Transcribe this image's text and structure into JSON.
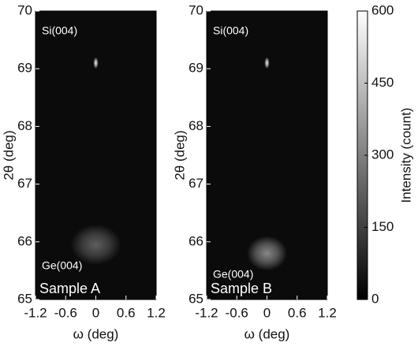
{
  "chart_data": [
    {
      "type": "heatmap",
      "annotation": "Sample A",
      "xlabel": "ω (deg)",
      "ylabel": "2θ (deg)",
      "xlim": [
        -1.2,
        1.2
      ],
      "xticks": [
        -1.2,
        -0.6,
        0,
        0.6,
        1.2
      ],
      "ylim": [
        65,
        70
      ],
      "yticks": [
        65,
        66,
        67,
        68,
        69,
        70
      ],
      "peaks": [
        {
          "label": "Si(004)",
          "omega": 0,
          "two_theta": 69.1,
          "intensity": 560,
          "omega_width": 0.05,
          "two_theta_width": 0.1
        },
        {
          "label": "Ge(004)",
          "omega": 0,
          "two_theta": 65.95,
          "intensity": 220,
          "omega_width": 0.5,
          "two_theta_width": 0.35
        }
      ]
    },
    {
      "type": "heatmap",
      "annotation": "Sample B",
      "xlabel": "ω (deg)",
      "ylabel": "2θ (deg)",
      "xlim": [
        -1.2,
        1.2
      ],
      "xticks": [
        -1.2,
        -0.6,
        0,
        0.6,
        1.2
      ],
      "ylim": [
        65,
        70
      ],
      "yticks": [
        65,
        66,
        67,
        68,
        69,
        70
      ],
      "peaks": [
        {
          "label": "Si(004)",
          "omega": 0,
          "two_theta": 69.1,
          "intensity": 560,
          "omega_width": 0.05,
          "two_theta_width": 0.1
        },
        {
          "label": "Ge(004)",
          "omega": 0,
          "two_theta": 65.8,
          "intensity": 320,
          "omega_width": 0.4,
          "two_theta_width": 0.3
        }
      ]
    },
    {
      "type": "colorbar",
      "label": "Intensity (count)",
      "clim": [
        0,
        600
      ],
      "cticks": [
        0,
        150,
        300,
        450,
        600
      ]
    }
  ]
}
